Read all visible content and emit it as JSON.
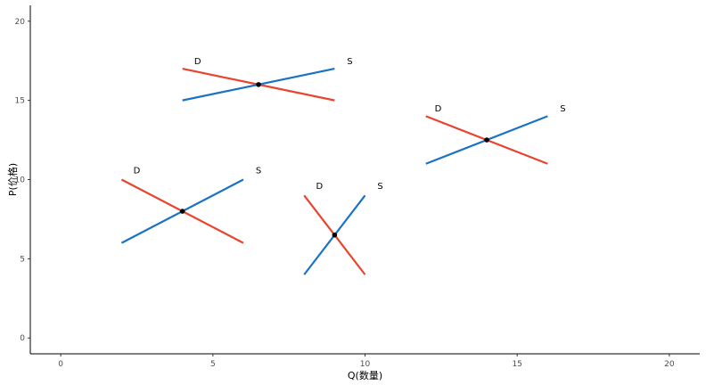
{
  "chart_data": {
    "type": "line",
    "xlabel": "Q(数量)",
    "ylabel": "P(价格)",
    "xlim": [
      -1,
      21
    ],
    "ylim": [
      -1,
      21
    ],
    "x_ticks": [
      0,
      5,
      10,
      15,
      20
    ],
    "y_ticks": [
      0,
      5,
      10,
      15,
      20
    ],
    "grid": false,
    "colors": {
      "demand": "#E8452E",
      "supply": "#1A72C4",
      "equilibrium": "#000000",
      "axis": "#000000",
      "tick_label": "#4d4d4d"
    },
    "series": [
      {
        "name": "D",
        "kind": "demand",
        "x": [
          4,
          9
        ],
        "y": [
          17,
          15
        ],
        "label_at": [
          4.5,
          17.3
        ]
      },
      {
        "name": "S",
        "kind": "supply",
        "x": [
          4,
          9
        ],
        "y": [
          15,
          17
        ],
        "label_at": [
          9.5,
          17.3
        ]
      },
      {
        "name": "D",
        "kind": "demand",
        "x": [
          12,
          16
        ],
        "y": [
          14,
          11
        ],
        "label_at": [
          12.4,
          14.3
        ]
      },
      {
        "name": "S",
        "kind": "supply",
        "x": [
          12,
          16
        ],
        "y": [
          11,
          14
        ],
        "label_at": [
          16.5,
          14.3
        ]
      },
      {
        "name": "D",
        "kind": "demand",
        "x": [
          2,
          6
        ],
        "y": [
          10,
          6
        ],
        "label_at": [
          2.5,
          10.4
        ]
      },
      {
        "name": "S",
        "kind": "supply",
        "x": [
          2,
          6
        ],
        "y": [
          6,
          10
        ],
        "label_at": [
          6.5,
          10.4
        ]
      },
      {
        "name": "D",
        "kind": "demand",
        "x": [
          8,
          10
        ],
        "y": [
          9,
          4
        ],
        "label_at": [
          8.5,
          9.4
        ]
      },
      {
        "name": "S",
        "kind": "supply",
        "x": [
          8,
          10
        ],
        "y": [
          4,
          9
        ],
        "label_at": [
          10.5,
          9.4
        ]
      }
    ],
    "equilibria": [
      {
        "x": 6.5,
        "y": 16
      },
      {
        "x": 14,
        "y": 12.5
      },
      {
        "x": 4,
        "y": 8
      },
      {
        "x": 9,
        "y": 6.5
      }
    ]
  }
}
